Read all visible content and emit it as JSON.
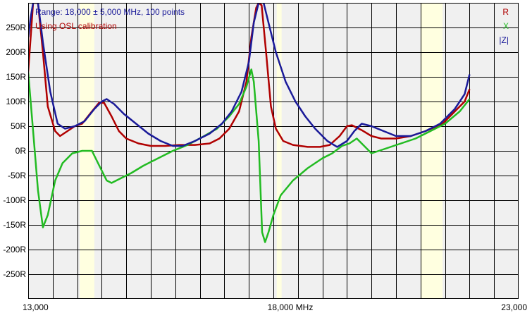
{
  "info": {
    "range_text": "Range: 18,000 ± 5,000 MHz, 100 points",
    "calibration_text": "Using OSL calibration"
  },
  "colors": {
    "plot_bg": "#f0f0f0",
    "grid": "#000000",
    "highlight": "#ffffe0",
    "info_range": "#1a1a99",
    "info_cal": "#b00000",
    "R": "#b00000",
    "X": "#22bb22",
    "Z": "#1a1a99"
  },
  "chart_data": {
    "type": "line",
    "title": "",
    "xlabel": "",
    "ylabel": "",
    "xlim": [
      13000,
      23000
    ],
    "ylim": [
      -300,
      300
    ],
    "x_ticks": [
      {
        "value": 13000,
        "label": "13,000"
      },
      {
        "value": 18000,
        "label": "18,000 MHz"
      },
      {
        "value": 23000,
        "label": "23,000"
      }
    ],
    "y_ticks": [
      {
        "value": 250,
        "label": "250R"
      },
      {
        "value": 200,
        "label": "200R"
      },
      {
        "value": 150,
        "label": "150R"
      },
      {
        "value": 100,
        "label": "100R"
      },
      {
        "value": 50,
        "label": "50R"
      },
      {
        "value": 0,
        "label": "0R"
      },
      {
        "value": -50,
        "label": "-50R"
      },
      {
        "value": -100,
        "label": "-100R"
      },
      {
        "value": -150,
        "label": "-150R"
      },
      {
        "value": -200,
        "label": "-200R"
      },
      {
        "value": -250,
        "label": "-250R"
      }
    ],
    "x_grid_step": 500,
    "y_grid_step": 50,
    "grid": true,
    "legend_position": "top-right",
    "highlight_bands": [
      [
        14050,
        14350
      ],
      [
        18068,
        18168
      ],
      [
        21000,
        21450
      ]
    ],
    "series": [
      {
        "name": "R",
        "color": "#b00000",
        "points": [
          [
            13000,
            160
          ],
          [
            13050,
            230
          ],
          [
            13100,
            300
          ],
          [
            13200,
            300
          ],
          [
            13300,
            200
          ],
          [
            13400,
            90
          ],
          [
            13550,
            40
          ],
          [
            13650,
            30
          ],
          [
            13800,
            40
          ],
          [
            13950,
            50
          ],
          [
            14100,
            55
          ],
          [
            14300,
            80
          ],
          [
            14450,
            98
          ],
          [
            14550,
            97
          ],
          [
            14700,
            70
          ],
          [
            14850,
            40
          ],
          [
            15000,
            25
          ],
          [
            15250,
            15
          ],
          [
            15500,
            10
          ],
          [
            15800,
            10
          ],
          [
            16100,
            12
          ],
          [
            16400,
            12
          ],
          [
            16700,
            15
          ],
          [
            16900,
            25
          ],
          [
            17100,
            45
          ],
          [
            17300,
            80
          ],
          [
            17450,
            140
          ],
          [
            17550,
            230
          ],
          [
            17650,
            290
          ],
          [
            17700,
            300
          ],
          [
            17760,
            295
          ],
          [
            17850,
            200
          ],
          [
            17950,
            90
          ],
          [
            18050,
            45
          ],
          [
            18200,
            20
          ],
          [
            18400,
            12
          ],
          [
            18700,
            8
          ],
          [
            18950,
            8
          ],
          [
            19150,
            12
          ],
          [
            19350,
            30
          ],
          [
            19500,
            50
          ],
          [
            19600,
            52
          ],
          [
            19800,
            42
          ],
          [
            20000,
            30
          ],
          [
            20200,
            25
          ],
          [
            20500,
            25
          ],
          [
            20800,
            30
          ],
          [
            21100,
            40
          ],
          [
            21450,
            55
          ],
          [
            21700,
            80
          ],
          [
            21900,
            100
          ],
          [
            22000,
            125
          ]
        ]
      },
      {
        "name": "X",
        "color": "#22bb22",
        "points": [
          [
            13000,
            160
          ],
          [
            13050,
            100
          ],
          [
            13100,
            40
          ],
          [
            13200,
            -80
          ],
          [
            13300,
            -155
          ],
          [
            13400,
            -130
          ],
          [
            13550,
            -60
          ],
          [
            13700,
            -25
          ],
          [
            13900,
            -5
          ],
          [
            14100,
            0
          ],
          [
            14300,
            0
          ],
          [
            14450,
            -30
          ],
          [
            14600,
            -60
          ],
          [
            14700,
            -65
          ],
          [
            14900,
            -55
          ],
          [
            15100,
            -45
          ],
          [
            15350,
            -30
          ],
          [
            15650,
            -15
          ],
          [
            15950,
            0
          ],
          [
            16250,
            12
          ],
          [
            16550,
            28
          ],
          [
            16850,
            45
          ],
          [
            17100,
            70
          ],
          [
            17300,
            95
          ],
          [
            17450,
            130
          ],
          [
            17550,
            165
          ],
          [
            17600,
            140
          ],
          [
            17700,
            20
          ],
          [
            17770,
            -165
          ],
          [
            17830,
            -185
          ],
          [
            17900,
            -165
          ],
          [
            18000,
            -130
          ],
          [
            18150,
            -90
          ],
          [
            18400,
            -60
          ],
          [
            18700,
            -35
          ],
          [
            19000,
            -15
          ],
          [
            19200,
            -5
          ],
          [
            19400,
            10
          ],
          [
            19550,
            15
          ],
          [
            19700,
            25
          ],
          [
            19850,
            10
          ],
          [
            20000,
            -5
          ],
          [
            20300,
            5
          ],
          [
            20600,
            15
          ],
          [
            20900,
            25
          ],
          [
            21200,
            40
          ],
          [
            21500,
            55
          ],
          [
            21800,
            80
          ],
          [
            22000,
            105
          ]
        ]
      },
      {
        "name": "|Z|",
        "color": "#1a1a99",
        "points": [
          [
            13000,
            230
          ],
          [
            13050,
            270
          ],
          [
            13100,
            300
          ],
          [
            13200,
            300
          ],
          [
            13300,
            220
          ],
          [
            13450,
            120
          ],
          [
            13600,
            55
          ],
          [
            13750,
            45
          ],
          [
            13950,
            50
          ],
          [
            14150,
            60
          ],
          [
            14350,
            85
          ],
          [
            14500,
            100
          ],
          [
            14600,
            105
          ],
          [
            14750,
            95
          ],
          [
            14950,
            75
          ],
          [
            15200,
            55
          ],
          [
            15450,
            35
          ],
          [
            15700,
            20
          ],
          [
            15950,
            10
          ],
          [
            16150,
            10
          ],
          [
            16400,
            20
          ],
          [
            16700,
            35
          ],
          [
            16950,
            55
          ],
          [
            17150,
            80
          ],
          [
            17350,
            120
          ],
          [
            17500,
            180
          ],
          [
            17600,
            260
          ],
          [
            17700,
            300
          ],
          [
            17800,
            300
          ],
          [
            17900,
            260
          ],
          [
            18050,
            200
          ],
          [
            18250,
            140
          ],
          [
            18450,
            100
          ],
          [
            18650,
            70
          ],
          [
            18850,
            45
          ],
          [
            19100,
            20
          ],
          [
            19300,
            8
          ],
          [
            19500,
            20
          ],
          [
            19650,
            40
          ],
          [
            19800,
            55
          ],
          [
            20000,
            50
          ],
          [
            20200,
            42
          ],
          [
            20500,
            30
          ],
          [
            20800,
            30
          ],
          [
            21100,
            40
          ],
          [
            21400,
            55
          ],
          [
            21700,
            85
          ],
          [
            21900,
            115
          ],
          [
            22000,
            155
          ]
        ]
      }
    ]
  }
}
